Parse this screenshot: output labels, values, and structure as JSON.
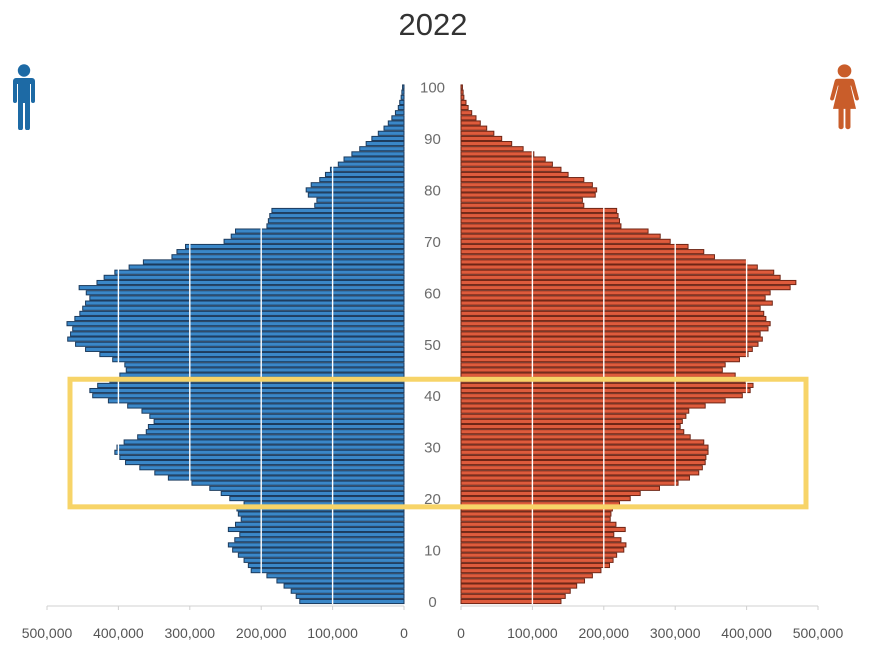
{
  "chart_data": {
    "type": "bar",
    "title": "2022",
    "xlim": [
      0,
      500000
    ],
    "ylim": [
      0,
      100
    ],
    "x_ticks": [
      0,
      100000,
      200000,
      300000,
      400000,
      500000
    ],
    "x_tick_labels": [
      "0",
      "100,000",
      "200,000",
      "300,000",
      "400,000",
      "500,000"
    ],
    "y_ticks": [
      0,
      10,
      20,
      30,
      40,
      50,
      60,
      70,
      80,
      90,
      100
    ],
    "ages": [
      0,
      1,
      2,
      3,
      4,
      5,
      6,
      7,
      8,
      9,
      10,
      11,
      12,
      13,
      14,
      15,
      16,
      17,
      18,
      19,
      20,
      21,
      22,
      23,
      24,
      25,
      26,
      27,
      28,
      29,
      30,
      31,
      32,
      33,
      34,
      35,
      36,
      37,
      38,
      39,
      40,
      41,
      42,
      43,
      44,
      45,
      46,
      47,
      48,
      49,
      50,
      51,
      52,
      53,
      54,
      55,
      56,
      57,
      58,
      59,
      60,
      61,
      62,
      63,
      64,
      65,
      66,
      67,
      68,
      69,
      70,
      71,
      72,
      73,
      74,
      75,
      76,
      77,
      78,
      79,
      80,
      81,
      82,
      83,
      84,
      85,
      86,
      87,
      88,
      89,
      90,
      91,
      92,
      93,
      94,
      95,
      96,
      97,
      98,
      99,
      100
    ],
    "series": [
      {
        "icon": "male-icon",
        "color": "#3a87c8",
        "edge_color": "#1b3a5c",
        "icon_color": "#1d6aa5",
        "values": [
          146000,
          151000,
          158000,
          168000,
          178000,
          192000,
          214000,
          218000,
          224000,
          232000,
          240000,
          246000,
          237000,
          230000,
          246000,
          236000,
          228000,
          232000,
          234000,
          224000,
          244000,
          256000,
          272000,
          297000,
          330000,
          349000,
          370000,
          390000,
          398000,
          405000,
          402000,
          392000,
          373000,
          361000,
          358000,
          350000,
          356000,
          367000,
          387000,
          414000,
          436000,
          440000,
          429000,
          412000,
          398000,
          389000,
          391000,
          408000,
          426000,
          446000,
          460000,
          471000,
          467000,
          464000,
          472000,
          461000,
          454000,
          450000,
          446000,
          440000,
          445000,
          455000,
          430000,
          420000,
          405000,
          385000,
          365000,
          325000,
          318000,
          306000,
          252000,
          242000,
          236000,
          192000,
          190000,
          188000,
          185000,
          125000,
          122000,
          134000,
          137000,
          130000,
          118000,
          110000,
          103000,
          92000,
          84000,
          73000,
          62000,
          53000,
          45000,
          36000,
          28000,
          22000,
          17000,
          12000,
          8000,
          6000,
          4000,
          3000,
          2000
        ]
      },
      {
        "icon": "female-icon",
        "color": "#de5b3c",
        "edge_color": "#6e2515",
        "icon_color": "#c95d2a",
        "values": [
          140000,
          146000,
          153000,
          162000,
          173000,
          184000,
          196000,
          208000,
          213000,
          218000,
          228000,
          231000,
          224000,
          214000,
          230000,
          217000,
          209000,
          210000,
          212000,
          222000,
          237000,
          251000,
          278000,
          304000,
          320000,
          333000,
          338000,
          342000,
          343000,
          346000,
          346000,
          340000,
          321000,
          312000,
          307000,
          310000,
          315000,
          319000,
          342000,
          370000,
          394000,
          405000,
          409000,
          398000,
          384000,
          366000,
          370000,
          390000,
          402000,
          408000,
          416000,
          422000,
          419000,
          430000,
          433000,
          427000,
          424000,
          419000,
          436000,
          426000,
          433000,
          461000,
          469000,
          447000,
          438000,
          415000,
          400000,
          355000,
          340000,
          318000,
          293000,
          279000,
          262000,
          224000,
          222000,
          220000,
          218000,
          172000,
          170000,
          188000,
          190000,
          184000,
          172000,
          150000,
          140000,
          128000,
          118000,
          102000,
          87000,
          71000,
          57000,
          46000,
          36000,
          27000,
          21000,
          15000,
          10000,
          7000,
          4000,
          3000,
          2000
        ]
      }
    ],
    "highlight": {
      "age_from": 18.4,
      "age_to": 43.2,
      "color": "#f7d468"
    }
  }
}
